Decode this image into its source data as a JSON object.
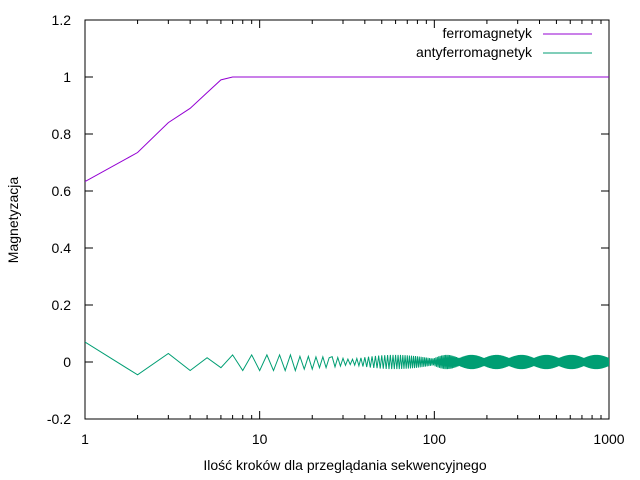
{
  "chart_data": {
    "type": "line",
    "xlabel": "Ilość kroków dla przeglądania sekwencyjnego",
    "ylabel": "Magnetyzacja",
    "xscale": "log",
    "xlim": [
      1,
      1000
    ],
    "ylim": [
      -0.2,
      1.2
    ],
    "grid": false,
    "legend_position": "top-right",
    "x_ticks": [
      {
        "value": 1,
        "label": "1"
      },
      {
        "value": 10,
        "label": "10"
      },
      {
        "value": 100,
        "label": "100"
      },
      {
        "value": 1000,
        "label": "1000"
      }
    ],
    "y_ticks": [
      {
        "value": -0.2,
        "label": "-0.2"
      },
      {
        "value": 0,
        "label": "0"
      },
      {
        "value": 0.2,
        "label": "0.2"
      },
      {
        "value": 0.4,
        "label": "0.4"
      },
      {
        "value": 0.6,
        "label": "0.6"
      },
      {
        "value": 0.8,
        "label": "0.8"
      },
      {
        "value": 1,
        "label": "1"
      },
      {
        "value": 1.2,
        "label": "1.2"
      }
    ],
    "series": [
      {
        "name": "ferromagnetyk",
        "color": "#9400d3",
        "x": [
          1,
          2,
          3,
          4,
          5,
          6,
          7,
          8,
          10,
          20,
          50,
          100,
          200,
          500,
          1000
        ],
        "y": [
          0.633,
          0.735,
          0.84,
          0.89,
          0.945,
          0.99,
          1.0,
          1.0,
          1.0,
          1.0,
          1.0,
          1.0,
          1.0,
          1.0,
          1.0
        ]
      },
      {
        "name": "antyferromagnetyk",
        "color": "#009e73",
        "x": [
          1,
          2,
          3,
          4,
          5,
          6,
          7,
          8,
          9,
          10,
          11,
          12,
          13,
          14,
          15,
          16,
          17,
          18,
          19,
          20,
          21,
          22,
          23,
          24,
          25,
          1000
        ],
        "y": [
          0.07,
          -0.045,
          0.03,
          -0.03,
          0.015,
          -0.02,
          0.025,
          -0.03,
          0.025,
          -0.03,
          0.025,
          -0.03,
          0.025,
          -0.03,
          0.025,
          -0.03,
          0.02,
          -0.025,
          0.02,
          -0.025,
          0.018,
          -0.02,
          0.018,
          -0.02,
          0.015,
          0.0
        ],
        "oscillation": {
          "x_start": 26,
          "x_end": 1000,
          "amplitude_max": 0.025,
          "band_amplitude": 0.02
        }
      }
    ]
  }
}
